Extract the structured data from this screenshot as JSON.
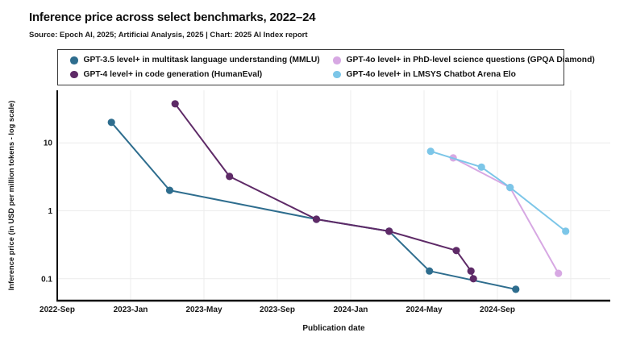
{
  "header": {
    "title": "Inference price across select benchmarks, 2022–24",
    "source_line": "Source: Epoch AI, 2025; Artificial Analysis, 2025 | Chart: 2025 AI Index report"
  },
  "chart_data": {
    "type": "line",
    "title": "Inference price across select benchmarks, 2022–24",
    "xlabel": "Publication date",
    "ylabel": "Inference price (in USD per million tokens - log scale)",
    "y_scale": "log",
    "ylim": [
      0.05,
      55
    ],
    "x_tick_labels": [
      "2022-Sep",
      "2023-Jan",
      "2023-May",
      "2023-Sep",
      "2024-Jan",
      "2024-May",
      "2024-Sep"
    ],
    "y_tick_labels": [
      "10",
      "1",
      "0.1"
    ],
    "grid": true,
    "legend_position": "top",
    "series": [
      {
        "name": "GPT-3.5 level+ in multitask language understanding (MMLU)",
        "color": "#2e6d8e",
        "points": [
          {
            "date": "2022-11-30",
            "usd": 20
          },
          {
            "date": "2023-03-05",
            "usd": 2
          },
          {
            "date": "2023-11-05",
            "usd": 0.75
          },
          {
            "date": "2024-03-04",
            "usd": 0.5
          },
          {
            "date": "2024-05-10",
            "usd": 0.13
          },
          {
            "date": "2024-10-01",
            "usd": 0.07
          }
        ]
      },
      {
        "name": "GPT-4 level+ in code generation (HumanEval)",
        "color": "#5e2a67",
        "points": [
          {
            "date": "2023-03-14",
            "usd": 37.5
          },
          {
            "date": "2023-06-13",
            "usd": 3.2
          },
          {
            "date": "2023-11-05",
            "usd": 0.75
          },
          {
            "date": "2024-03-04",
            "usd": 0.5
          },
          {
            "date": "2024-06-24",
            "usd": 0.26
          },
          {
            "date": "2024-07-18",
            "usd": 0.13
          },
          {
            "date": "2024-07-22",
            "usd": 0.1
          }
        ]
      },
      {
        "name": "GPT-4o level+ in PhD-level science questions (GPQA Diamond)",
        "color": "#d7a8e3",
        "points": [
          {
            "date": "2024-06-19",
            "usd": 6
          },
          {
            "date": "2024-09-22",
            "usd": 2.2
          },
          {
            "date": "2024-12-11",
            "usd": 0.12
          }
        ]
      },
      {
        "name": "GPT-4o level+ in LMSYS Chatbot Arena Elo",
        "color": "#7cc6e8",
        "points": [
          {
            "date": "2024-05-12",
            "usd": 7.5
          },
          {
            "date": "2024-08-05",
            "usd": 4.4
          },
          {
            "date": "2024-09-22",
            "usd": 2.2
          },
          {
            "date": "2024-12-23",
            "usd": 0.5
          }
        ]
      }
    ]
  }
}
